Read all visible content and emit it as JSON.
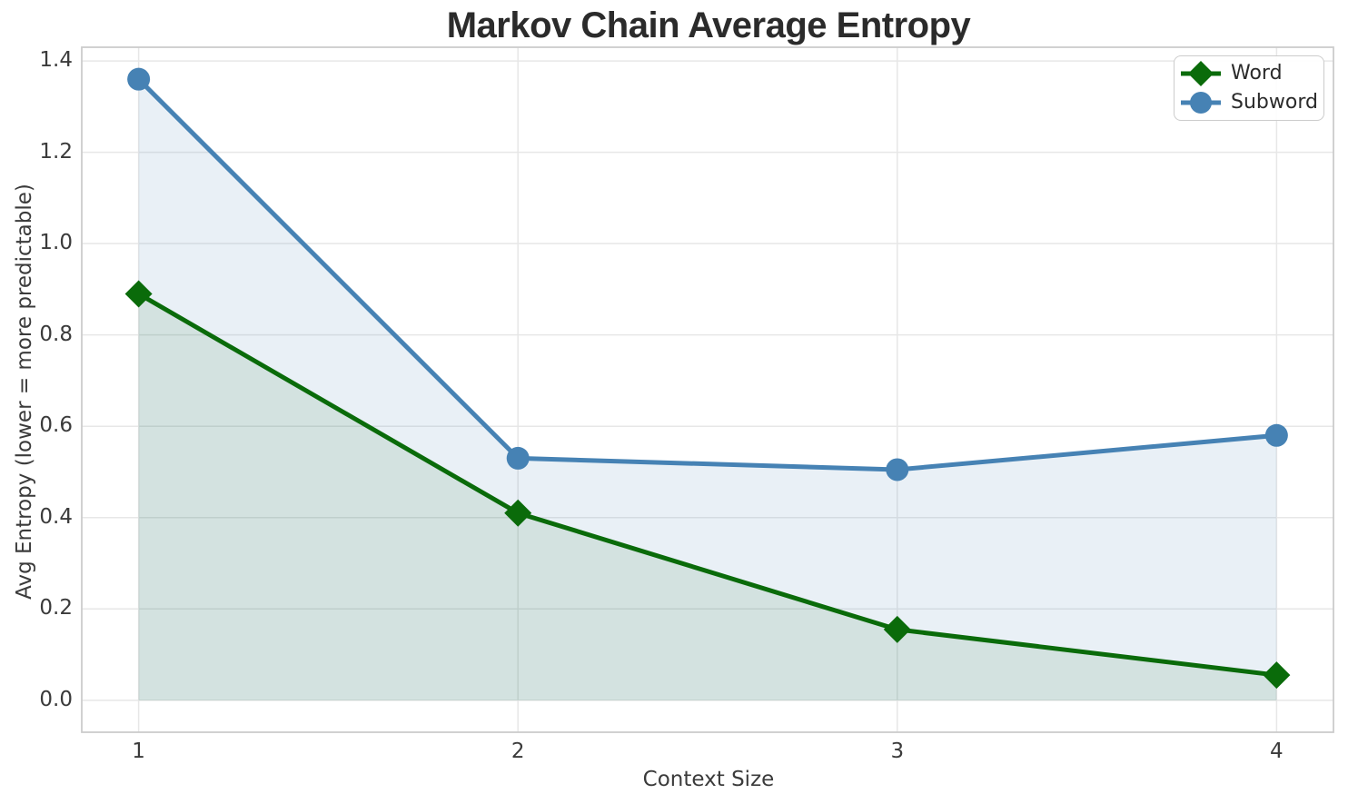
{
  "chart_data": {
    "type": "line",
    "title": "Markov Chain Average Entropy",
    "xlabel": "Context Size",
    "ylabel": "Avg Entropy (lower = more predictable)",
    "x": [
      1,
      2,
      3,
      4
    ],
    "series": [
      {
        "name": "Word",
        "values": [
          0.89,
          0.41,
          0.155,
          0.055
        ],
        "color": "#0a6b0a",
        "fill_alpha": 0.1,
        "marker": "diamond"
      },
      {
        "name": "Subword",
        "values": [
          1.36,
          0.53,
          0.505,
          0.58
        ],
        "color": "#4682b4",
        "fill_alpha": 0.12,
        "marker": "circle"
      }
    ],
    "xlim": [
      0.85,
      4.15
    ],
    "ylim": [
      -0.07,
      1.43
    ],
    "xticks": [
      "1",
      "2",
      "3",
      "4"
    ],
    "yticks": [
      "0.0",
      "0.2",
      "0.4",
      "0.6",
      "0.8",
      "1.0",
      "1.2",
      "1.4"
    ],
    "grid": true,
    "area_fill": "to_zero",
    "legend_position": "upper right"
  },
  "style": {
    "background": "#ffffff",
    "grid_color": "#e7e7e7",
    "spine_color": "#cccccc",
    "tick_color": "#3b3b3b",
    "title_color": "#2b2b2b",
    "line_width": 5,
    "marker_size": 15
  }
}
